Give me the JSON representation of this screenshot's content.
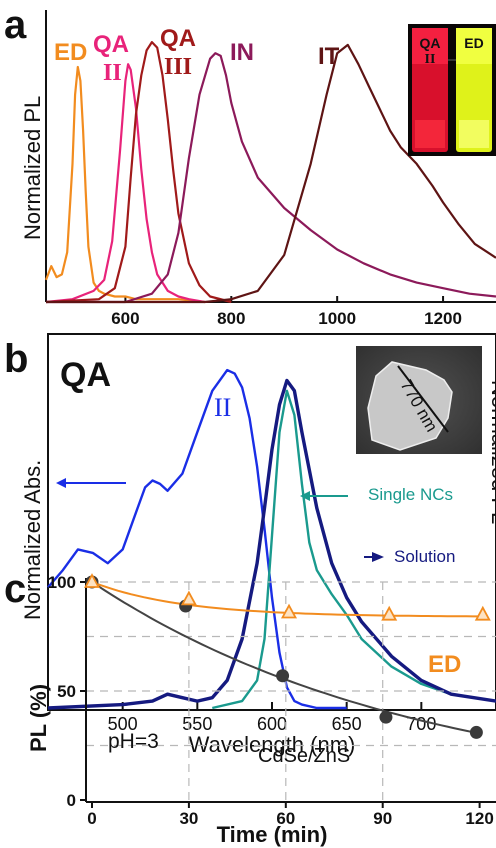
{
  "chart_data": [
    {
      "panel": "a",
      "type": "line",
      "xlabel": "",
      "ylabel": "Normalized PL",
      "xlim": [
        450,
        1300
      ],
      "ylim": [
        0,
        1.02
      ],
      "xticks": [
        "600",
        "800",
        "1000",
        "1200"
      ],
      "series": [
        {
          "name": "ED",
          "color": "#f28c1f",
          "x": [
            450,
            460,
            470,
            480,
            490,
            500,
            505,
            510,
            515,
            520,
            525,
            530,
            540,
            550,
            560,
            580,
            600,
            620,
            650,
            700,
            750
          ],
          "y": [
            0.08,
            0.13,
            0.09,
            0.1,
            0.18,
            0.5,
            0.75,
            0.85,
            0.8,
            0.62,
            0.4,
            0.2,
            0.07,
            0.04,
            0.03,
            0.02,
            0.02,
            0.01,
            0.01,
            0.01,
            0.0
          ]
        },
        {
          "name": "QA II",
          "color": "#e8237a",
          "x": [
            450,
            500,
            540,
            560,
            575,
            590,
            600,
            605,
            610,
            620,
            630,
            640,
            650,
            660,
            680,
            700,
            720,
            750
          ],
          "y": [
            0.0,
            0.01,
            0.04,
            0.08,
            0.22,
            0.55,
            0.8,
            0.86,
            0.84,
            0.7,
            0.48,
            0.3,
            0.18,
            0.1,
            0.04,
            0.02,
            0.01,
            0.0
          ]
        },
        {
          "name": "QA III",
          "color": "#a01a1a",
          "x": [
            450,
            550,
            580,
            600,
            610,
            620,
            630,
            640,
            650,
            660,
            670,
            680,
            690,
            700,
            720,
            740,
            760,
            800
          ],
          "y": [
            0.0,
            0.01,
            0.05,
            0.2,
            0.45,
            0.68,
            0.82,
            0.91,
            0.94,
            0.92,
            0.82,
            0.66,
            0.48,
            0.32,
            0.14,
            0.06,
            0.02,
            0.0
          ]
        },
        {
          "name": "IN",
          "color": "#8c1a5a",
          "x": [
            450,
            600,
            650,
            680,
            700,
            720,
            740,
            760,
            770,
            780,
            790,
            800,
            820,
            850,
            900,
            950,
            1000,
            1050,
            1100,
            1150,
            1200,
            1250,
            1300
          ],
          "y": [
            0.0,
            0.0,
            0.03,
            0.1,
            0.25,
            0.52,
            0.75,
            0.88,
            0.9,
            0.89,
            0.82,
            0.72,
            0.58,
            0.45,
            0.34,
            0.26,
            0.19,
            0.14,
            0.1,
            0.07,
            0.05,
            0.03,
            0.02
          ]
        },
        {
          "name": "IT",
          "color": "#5e1414",
          "x": [
            450,
            700,
            750,
            800,
            850,
            900,
            950,
            980,
            1000,
            1020,
            1040,
            1060,
            1080,
            1100,
            1120,
            1150,
            1180,
            1200,
            1230,
            1260,
            1300
          ],
          "y": [
            0.0,
            0.0,
            0.0,
            0.01,
            0.04,
            0.17,
            0.5,
            0.75,
            0.9,
            0.93,
            0.86,
            0.78,
            0.7,
            0.62,
            0.56,
            0.5,
            0.42,
            0.36,
            0.28,
            0.21,
            0.16
          ]
        }
      ],
      "inset_labels": [
        "QA",
        "II",
        "ED"
      ],
      "inset_colors": {
        "left": "#e01030",
        "right": "#e0f020"
      }
    },
    {
      "panel": "b",
      "type": "line",
      "title": "QA",
      "xlabel": "Wavelength (nm)",
      "ylabel": "Normalized Abs.",
      "ylabel_right": "Normalized PL",
      "xlim": [
        450,
        750
      ],
      "ylim": [
        0,
        1.05
      ],
      "xticks": [
        "500",
        "550",
        "600",
        "650",
        "700"
      ],
      "series": [
        {
          "name": "II",
          "color": "#1a2ee6",
          "x": [
            450,
            460,
            470,
            480,
            490,
            500,
            510,
            515,
            520,
            525,
            530,
            540,
            550,
            560,
            570,
            575,
            580,
            585,
            590,
            595,
            600,
            605,
            610,
            615,
            620,
            630,
            640,
            650
          ],
          "y": [
            0.35,
            0.4,
            0.46,
            0.45,
            0.42,
            0.46,
            0.58,
            0.64,
            0.66,
            0.65,
            0.63,
            0.68,
            0.8,
            0.92,
            0.98,
            0.97,
            0.93,
            0.84,
            0.7,
            0.52,
            0.32,
            0.16,
            0.06,
            0.02,
            0.01,
            0.0,
            0.0,
            0.0
          ]
        },
        {
          "name": "Single NCs",
          "color": "#1a9a8e",
          "x": [
            560,
            580,
            590,
            595,
            600,
            605,
            610,
            615,
            620,
            625,
            630,
            640,
            650,
            660,
            680,
            700,
            720,
            750
          ],
          "y": [
            0.0,
            0.02,
            0.08,
            0.2,
            0.5,
            0.8,
            0.92,
            0.85,
            0.65,
            0.48,
            0.4,
            0.33,
            0.27,
            0.2,
            0.12,
            0.07,
            0.04,
            0.02
          ]
        },
        {
          "name": "Solution",
          "color": "#151a80",
          "x": [
            450,
            500,
            520,
            530,
            540,
            550,
            560,
            570,
            580,
            590,
            595,
            600,
            605,
            610,
            615,
            620,
            630,
            640,
            650,
            660,
            680,
            700,
            720,
            750
          ],
          "y": [
            0.0,
            0.01,
            0.02,
            0.04,
            0.03,
            0.02,
            0.03,
            0.08,
            0.2,
            0.42,
            0.58,
            0.75,
            0.88,
            0.95,
            0.92,
            0.8,
            0.58,
            0.42,
            0.32,
            0.25,
            0.15,
            0.08,
            0.04,
            0.02
          ]
        }
      ],
      "annotations": {
        "peak_label": "II",
        "single": "Single NCs",
        "solution": "Solution",
        "scale": "770 nm"
      }
    },
    {
      "panel": "c",
      "type": "scatter",
      "xlabel": "Time (min)",
      "ylabel": "PL (%)",
      "xlim": [
        0,
        125
      ],
      "ylim": [
        0,
        100
      ],
      "xticks": [
        "0",
        "30",
        "60",
        "90",
        "120"
      ],
      "yticks": [
        "0",
        "50",
        "100"
      ],
      "condition": "pH=3",
      "series": [
        {
          "name": "ED",
          "color": "#f28c1f",
          "marker": "triangle",
          "x": [
            0,
            30,
            61,
            92,
            121
          ],
          "y": [
            100,
            92,
            86,
            85,
            85
          ]
        },
        {
          "name": "CdSe/ZnS",
          "color": "#333333",
          "marker": "circle",
          "x": [
            0,
            29,
            59,
            91,
            119
          ],
          "y": [
            100,
            89,
            57,
            38,
            31
          ]
        }
      ]
    }
  ],
  "panel_letters": [
    "a",
    "b",
    "c"
  ]
}
